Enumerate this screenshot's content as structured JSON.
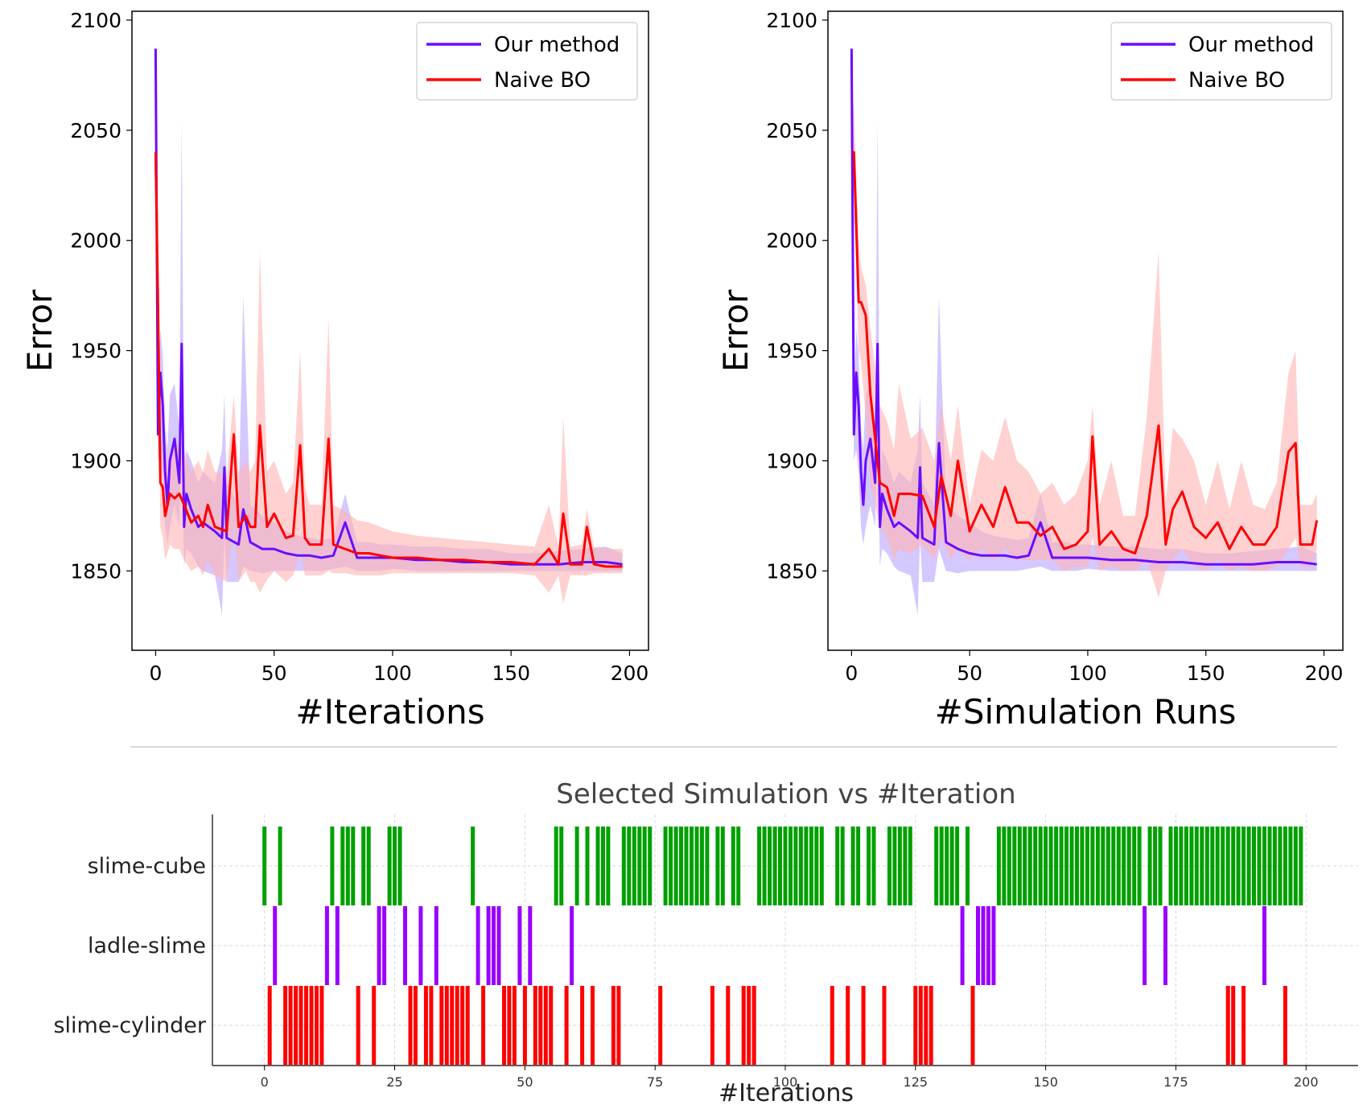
{
  "colors": {
    "our_method": "#6a0dff",
    "naive_bo": "#ff0000",
    "our_band": "#b9a4ff",
    "naive_band": "#ffb3b3",
    "slime_cube": "#00a000",
    "ladle_slime": "#9900ff",
    "slime_cylinder": "#ff0000",
    "axis": "#000000",
    "separator": "#cccccc",
    "title": "#444444"
  },
  "chart_data": [
    {
      "type": "line",
      "xlabel": "#Iterations",
      "ylabel": "Error",
      "xlim": [
        -10,
        208
      ],
      "ylim": [
        1814,
        2104
      ],
      "xticks": [
        0,
        50,
        100,
        150,
        200
      ],
      "yticks": [
        1850,
        1900,
        1950,
        2000,
        2050,
        2100
      ],
      "legend": {
        "placement": "top-right",
        "entries": [
          "Our method",
          "Naive BO"
        ]
      },
      "series": [
        {
          "name": "Our method",
          "x": [
            0,
            1,
            2,
            3,
            4,
            5,
            6,
            8,
            10,
            11,
            12,
            13,
            15,
            18,
            20,
            25,
            28,
            29,
            30,
            35,
            37,
            40,
            45,
            50,
            55,
            60,
            65,
            70,
            75,
            80,
            85,
            90,
            95,
            100,
            110,
            120,
            130,
            140,
            150,
            160,
            170,
            180,
            190,
            197
          ],
          "values": [
            2087,
            1912,
            1940,
            1925,
            1895,
            1880,
            1900,
            1910,
            1890,
            1953,
            1870,
            1885,
            1878,
            1870,
            1872,
            1868,
            1865,
            1897,
            1865,
            1862,
            1878,
            1863,
            1860,
            1860,
            1858,
            1857,
            1857,
            1856,
            1857,
            1872,
            1856,
            1856,
            1856,
            1856,
            1855,
            1855,
            1854,
            1854,
            1853,
            1853,
            1853,
            1854,
            1854,
            1853
          ],
          "lower": [
            2060,
            1900,
            1905,
            1895,
            1870,
            1862,
            1870,
            1880,
            1870,
            1915,
            1852,
            1860,
            1858,
            1852,
            1850,
            1848,
            1830,
            1865,
            1845,
            1845,
            1852,
            1850,
            1849,
            1850,
            1850,
            1850,
            1850,
            1850,
            1851,
            1852,
            1850,
            1850,
            1850,
            1851,
            1850,
            1850,
            1850,
            1850,
            1850,
            1850,
            1850,
            1850,
            1850,
            1850
          ],
          "upper": [
            2092,
            1930,
            1960,
            1948,
            1915,
            1905,
            1930,
            1935,
            1915,
            2055,
            1890,
            1905,
            1900,
            1890,
            1895,
            1890,
            1905,
            1930,
            1890,
            1880,
            1975,
            1880,
            1875,
            1872,
            1868,
            1866,
            1865,
            1864,
            1865,
            1885,
            1863,
            1863,
            1862,
            1862,
            1861,
            1861,
            1860,
            1860,
            1858,
            1858,
            1859,
            1860,
            1861,
            1858
          ]
        },
        {
          "name": "Naive BO",
          "x": [
            0,
            1,
            2,
            3,
            4,
            5,
            6,
            8,
            10,
            12,
            15,
            18,
            20,
            22,
            25,
            30,
            33,
            35,
            38,
            40,
            42,
            44,
            47,
            50,
            55,
            58,
            61,
            63,
            65,
            70,
            73,
            75,
            80,
            85,
            90,
            95,
            100,
            110,
            120,
            130,
            140,
            150,
            160,
            166,
            170,
            172,
            175,
            180,
            182,
            185,
            190,
            197
          ],
          "values": [
            2040,
            1970,
            1890,
            1888,
            1875,
            1880,
            1885,
            1883,
            1885,
            1880,
            1872,
            1875,
            1870,
            1880,
            1870,
            1868,
            1912,
            1870,
            1875,
            1870,
            1870,
            1916,
            1870,
            1876,
            1865,
            1866,
            1907,
            1865,
            1862,
            1862,
            1910,
            1862,
            1860,
            1858,
            1858,
            1857,
            1856,
            1856,
            1855,
            1855,
            1854,
            1854,
            1853,
            1860,
            1853,
            1876,
            1853,
            1853,
            1870,
            1853,
            1852,
            1852
          ],
          "lower": [
            2030,
            1955,
            1870,
            1865,
            1855,
            1858,
            1862,
            1860,
            1860,
            1855,
            1850,
            1852,
            1848,
            1855,
            1848,
            1845,
            1870,
            1845,
            1850,
            1845,
            1845,
            1840,
            1846,
            1850,
            1845,
            1848,
            1860,
            1848,
            1848,
            1848,
            1850,
            1849,
            1849,
            1848,
            1848,
            1848,
            1849,
            1849,
            1849,
            1849,
            1849,
            1849,
            1848,
            1840,
            1848,
            1835,
            1848,
            1848,
            1848,
            1849,
            1849,
            1849
          ],
          "upper": [
            2045,
            1985,
            1910,
            1905,
            1895,
            1900,
            1905,
            1905,
            1910,
            1905,
            1895,
            1900,
            1895,
            1905,
            1895,
            1893,
            1930,
            1895,
            1900,
            1895,
            1900,
            1995,
            1895,
            1900,
            1885,
            1890,
            1950,
            1888,
            1880,
            1880,
            1965,
            1880,
            1877,
            1873,
            1872,
            1870,
            1868,
            1866,
            1865,
            1864,
            1863,
            1862,
            1861,
            1880,
            1861,
            1920,
            1861,
            1862,
            1878,
            1861,
            1860,
            1860
          ]
        }
      ]
    },
    {
      "type": "line",
      "xlabel": "#Simulation Runs",
      "ylabel": "Error",
      "xlim": [
        -10,
        208
      ],
      "ylim": [
        1814,
        2104
      ],
      "xticks": [
        0,
        50,
        100,
        150,
        200
      ],
      "yticks": [
        1850,
        1900,
        1950,
        2000,
        2050,
        2100
      ],
      "legend": {
        "placement": "top-right",
        "entries": [
          "Our method",
          "Naive BO"
        ]
      },
      "series": [
        {
          "name": "Our method",
          "x": [
            0,
            1,
            2,
            3,
            4,
            5,
            6,
            8,
            10,
            11,
            12,
            13,
            15,
            18,
            20,
            25,
            28,
            29,
            30,
            35,
            37,
            40,
            45,
            50,
            55,
            60,
            65,
            70,
            75,
            80,
            85,
            90,
            95,
            100,
            110,
            120,
            130,
            140,
            150,
            160,
            170,
            180,
            190,
            197
          ],
          "values": [
            2087,
            1912,
            1940,
            1925,
            1895,
            1880,
            1900,
            1910,
            1890,
            1953,
            1870,
            1885,
            1878,
            1870,
            1872,
            1868,
            1865,
            1897,
            1865,
            1862,
            1908,
            1863,
            1860,
            1858,
            1857,
            1857,
            1857,
            1856,
            1857,
            1872,
            1856,
            1856,
            1856,
            1856,
            1855,
            1855,
            1854,
            1854,
            1853,
            1853,
            1853,
            1854,
            1854,
            1853
          ],
          "lower": [
            2060,
            1900,
            1905,
            1895,
            1870,
            1862,
            1870,
            1880,
            1870,
            1915,
            1852,
            1860,
            1858,
            1852,
            1850,
            1848,
            1830,
            1865,
            1845,
            1845,
            1860,
            1850,
            1849,
            1850,
            1850,
            1850,
            1850,
            1850,
            1851,
            1852,
            1850,
            1850,
            1850,
            1851,
            1850,
            1850,
            1850,
            1850,
            1850,
            1850,
            1850,
            1850,
            1850,
            1850
          ],
          "upper": [
            2092,
            1930,
            1960,
            1948,
            1915,
            1905,
            1930,
            1935,
            1915,
            2055,
            1890,
            1905,
            1900,
            1890,
            1895,
            1890,
            1905,
            1930,
            1890,
            1880,
            1975,
            1880,
            1875,
            1872,
            1868,
            1866,
            1865,
            1864,
            1865,
            1885,
            1863,
            1863,
            1862,
            1862,
            1861,
            1861,
            1860,
            1860,
            1858,
            1858,
            1859,
            1860,
            1861,
            1858
          ]
        },
        {
          "name": "Naive BO",
          "x": [
            0,
            1,
            3,
            4,
            6,
            8,
            12,
            15,
            18,
            20,
            25,
            30,
            35,
            38,
            42,
            45,
            50,
            55,
            60,
            65,
            70,
            75,
            80,
            85,
            90,
            95,
            100,
            102,
            105,
            110,
            115,
            120,
            125,
            130,
            133,
            136,
            140,
            145,
            150,
            155,
            160,
            165,
            170,
            175,
            180,
            185,
            188,
            190,
            195,
            197
          ],
          "values": [
            2040,
            2040,
            1972,
            1972,
            1966,
            1930,
            1890,
            1888,
            1875,
            1885,
            1885,
            1884,
            1870,
            1893,
            1875,
            1900,
            1868,
            1880,
            1870,
            1888,
            1872,
            1872,
            1866,
            1870,
            1860,
            1862,
            1868,
            1911,
            1862,
            1868,
            1860,
            1858,
            1875,
            1916,
            1862,
            1878,
            1886,
            1870,
            1865,
            1872,
            1860,
            1870,
            1862,
            1862,
            1870,
            1904,
            1908,
            1862,
            1862,
            1873
          ],
          "lower": [
            2040,
            2020,
            1950,
            1945,
            1920,
            1890,
            1870,
            1865,
            1855,
            1860,
            1858,
            1862,
            1855,
            1865,
            1855,
            1860,
            1855,
            1860,
            1855,
            1860,
            1855,
            1855,
            1855,
            1855,
            1850,
            1852,
            1852,
            1865,
            1850,
            1852,
            1850,
            1850,
            1855,
            1838,
            1850,
            1855,
            1860,
            1852,
            1850,
            1855,
            1850,
            1852,
            1850,
            1850,
            1852,
            1860,
            1865,
            1852,
            1852,
            1860
          ],
          "upper": [
            2065,
            2060,
            2000,
            1988,
            1980,
            1960,
            1925,
            1918,
            1905,
            1935,
            1910,
            1915,
            1900,
            1925,
            1900,
            1925,
            1880,
            1905,
            1900,
            1920,
            1900,
            1895,
            1885,
            1890,
            1880,
            1885,
            1900,
            1925,
            1880,
            1900,
            1875,
            1875,
            1920,
            1995,
            1880,
            1915,
            1910,
            1900,
            1880,
            1900,
            1878,
            1900,
            1880,
            1878,
            1890,
            1940,
            1950,
            1880,
            1880,
            1885
          ]
        }
      ]
    },
    {
      "type": "event",
      "title": "Selected Simulation vs #Iteration",
      "xlabel": "#Iterations",
      "xlim": [
        -10,
        210
      ],
      "xticks": [
        0,
        25,
        50,
        75,
        100,
        125,
        150,
        175,
        200
      ],
      "categories": [
        "slime-cube",
        "ladle-slime",
        "slime-cylinder"
      ],
      "grid": true,
      "events": {
        "slime-cube": [
          0,
          3,
          13,
          15,
          16,
          17,
          19,
          20,
          24,
          25,
          26,
          40,
          56,
          57,
          60,
          62,
          64,
          65,
          66,
          69,
          70,
          71,
          72,
          73,
          74,
          77,
          78,
          79,
          80,
          81,
          82,
          83,
          84,
          85,
          87,
          88,
          90,
          91,
          95,
          96,
          97,
          98,
          99,
          100,
          101,
          102,
          103,
          104,
          105,
          106,
          107,
          110,
          111,
          113,
          114,
          116,
          117,
          120,
          121,
          122,
          123,
          124,
          129,
          130,
          131,
          132,
          133,
          135,
          141,
          142,
          143,
          144,
          145,
          146,
          147,
          148,
          149,
          150,
          151,
          152,
          153,
          154,
          155,
          156,
          157,
          158,
          159,
          160,
          161,
          162,
          163,
          164,
          165,
          166,
          167,
          168,
          170,
          171,
          172,
          174,
          175,
          176,
          177,
          178,
          179,
          180,
          181,
          182,
          183,
          184,
          185,
          186,
          187,
          188,
          189,
          190,
          191,
          192,
          193,
          194,
          195,
          196,
          197,
          198,
          199
        ],
        "ladle-slime": [
          2,
          12,
          14,
          22,
          23,
          27,
          30,
          33,
          41,
          43,
          44,
          45,
          49,
          51,
          59,
          134,
          137,
          138,
          139,
          140,
          169,
          173,
          192
        ],
        "slime-cylinder": [
          1,
          4,
          5,
          6,
          7,
          8,
          9,
          10,
          11,
          18,
          21,
          28,
          29,
          31,
          32,
          34,
          35,
          36,
          37,
          38,
          39,
          42,
          46,
          47,
          48,
          50,
          52,
          53,
          54,
          55,
          58,
          61,
          63,
          67,
          68,
          76,
          86,
          89,
          92,
          93,
          94,
          109,
          112,
          115,
          119,
          125,
          126,
          127,
          128,
          136,
          185,
          186,
          188,
          196
        ]
      }
    }
  ]
}
